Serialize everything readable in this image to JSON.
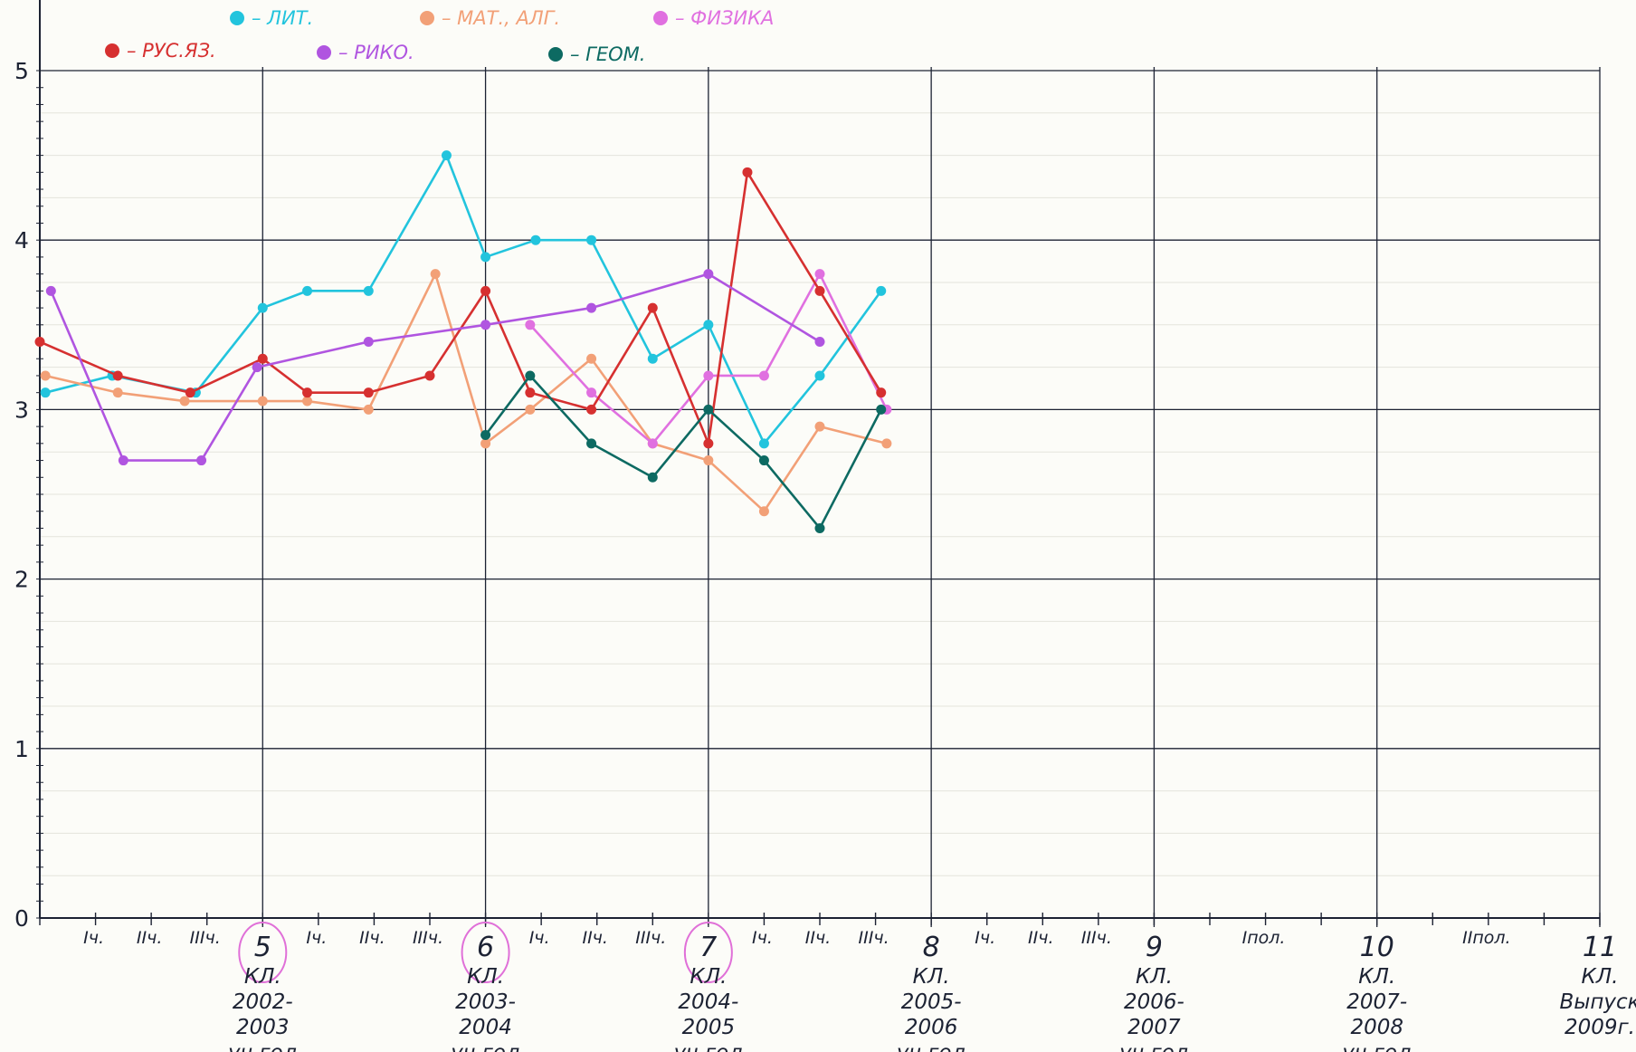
{
  "chart_data": {
    "type": "line",
    "title": "",
    "xlabel": "",
    "ylabel": "",
    "ylim": [
      0,
      5
    ],
    "yticks": [
      "0",
      "1",
      "2",
      "3",
      "4",
      "5"
    ],
    "grid": true,
    "legend_position": "top-left",
    "x_ticks": [
      {
        "x": 1,
        "label": "Iч."
      },
      {
        "x": 2,
        "label": "IIч."
      },
      {
        "x": 3,
        "label": "IIIч."
      },
      {
        "x": 5,
        "label": "Iч."
      },
      {
        "x": 6,
        "label": "IIч."
      },
      {
        "x": 7,
        "label": "IIIч."
      },
      {
        "x": 9,
        "label": "Iч."
      },
      {
        "x": 10,
        "label": "IIч."
      },
      {
        "x": 11,
        "label": "IIIч."
      },
      {
        "x": 13,
        "label": "Iч."
      },
      {
        "x": 14,
        "label": "IIч."
      },
      {
        "x": 15,
        "label": "IIIч."
      },
      {
        "x": 17,
        "label": "Iч."
      },
      {
        "x": 18,
        "label": "IIч."
      },
      {
        "x": 19,
        "label": "IIIч."
      },
      {
        "x": 22,
        "label": "Iпол."
      },
      {
        "x": 26,
        "label": "IIпол."
      }
    ],
    "year_labels": [
      {
        "x": 4,
        "grade": "5",
        "kl": "КЛ.",
        "years": "2002-",
        "years2": "2003",
        "note": "уч.год",
        "circled": true
      },
      {
        "x": 8,
        "grade": "6",
        "kl": "КЛ.",
        "years": "2003-",
        "years2": "2004",
        "note": "уч.год",
        "circled": true
      },
      {
        "x": 12,
        "grade": "7",
        "kl": "КЛ.",
        "years": "2004-",
        "years2": "2005",
        "note": "уч.год",
        "circled": true
      },
      {
        "x": 16,
        "grade": "8",
        "kl": "КЛ.",
        "years": "2005-",
        "years2": "2006",
        "note": "уч.год",
        "circled": false
      },
      {
        "x": 20,
        "grade": "9",
        "kl": "КЛ.",
        "years": "2006-",
        "years2": "2007",
        "note": "уч.год",
        "circled": false
      },
      {
        "x": 24,
        "grade": "10",
        "kl": "КЛ.",
        "years": "2007-",
        "years2": "2008",
        "note": "уч.год",
        "circled": false
      },
      {
        "x": 28,
        "grade": "11",
        "kl": "КЛ.",
        "years": "Выпуск",
        "years2": "2009г.",
        "note": "",
        "circled": false
      }
    ],
    "series": [
      {
        "name": "ЛИТ.",
        "color": "#22c4dd",
        "x": [
          0.1,
          1.3,
          2.8,
          4,
          4.8,
          5.9,
          7.3,
          8,
          8.9,
          9.9,
          11,
          12,
          13,
          14,
          15.1
        ],
        "values": [
          3.1,
          3.2,
          3.1,
          3.6,
          3.7,
          3.7,
          4.5,
          3.9,
          4.0,
          4.0,
          3.3,
          3.5,
          2.8,
          3.2,
          3.7
        ]
      },
      {
        "name": "МАТ., АЛГ.",
        "color": "#f2a077",
        "x": [
          0.1,
          1.4,
          2.6,
          4,
          4.8,
          5.9,
          7.1,
          8,
          8.8,
          9.9,
          11,
          12,
          13,
          14,
          15.2
        ],
        "values": [
          3.2,
          3.1,
          3.05,
          3.05,
          3.05,
          3.0,
          3.8,
          2.8,
          3.0,
          3.3,
          2.8,
          2.7,
          2.4,
          2.9,
          2.8
        ]
      },
      {
        "name": "ФИЗИКА",
        "color": "#e070e0",
        "x": [
          8.8,
          9.9,
          11,
          12,
          13,
          14,
          15.2
        ],
        "values": [
          3.5,
          3.1,
          2.8,
          3.2,
          3.2,
          3.8,
          3.0
        ]
      },
      {
        "name": "РУС.ЯЗ.",
        "color": "#d63030",
        "x": [
          0,
          1.4,
          2.7,
          4,
          4.8,
          5.9,
          7.0,
          8,
          8.8,
          9.9,
          11,
          12,
          12.7,
          14,
          15.1
        ],
        "values": [
          3.4,
          3.2,
          3.1,
          3.3,
          3.1,
          3.1,
          3.2,
          3.7,
          3.1,
          3.0,
          3.6,
          2.8,
          4.4,
          3.7,
          3.1
        ]
      },
      {
        "name": "РИКО.",
        "color": "#b055e0",
        "x": [
          0.2,
          1.5,
          2.9,
          3.9,
          5.9,
          8,
          9.9,
          12,
          14
        ],
        "values": [
          3.7,
          2.7,
          2.7,
          3.25,
          3.4,
          3.5,
          3.6,
          3.8,
          3.4
        ]
      },
      {
        "name": "ГЕОМ.",
        "color": "#0d6a62",
        "x": [
          8,
          8.8,
          9.9,
          11,
          12,
          13,
          14,
          15.1
        ],
        "values": [
          2.85,
          3.2,
          2.8,
          2.6,
          3.0,
          2.7,
          2.3,
          3.0
        ]
      }
    ]
  }
}
